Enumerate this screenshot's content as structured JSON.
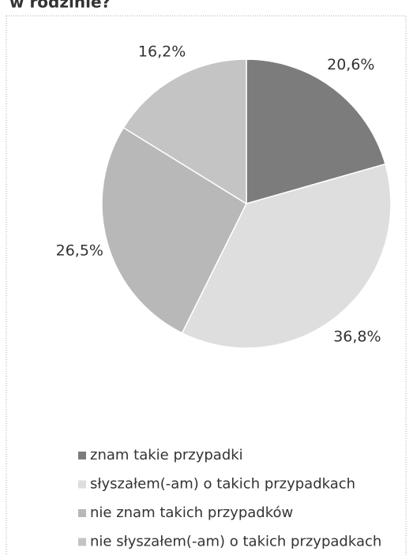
{
  "chart_data": {
    "type": "pie",
    "title": "w rodzinie?",
    "categories": [
      "znam takie przypadki",
      "słyszałem(-am) o takich przypadkach",
      "nie znam takich przypadków",
      "nie słyszałem(-am) o takich przypadkach"
    ],
    "values": [
      20.6,
      36.8,
      26.5,
      16.2
    ],
    "value_labels": [
      "20,6%",
      "36,8%",
      "26,5%",
      "16,2%"
    ],
    "colors": [
      "#7c7c7c",
      "#dedede",
      "#b8b8b8",
      "#c4c4c4"
    ]
  }
}
